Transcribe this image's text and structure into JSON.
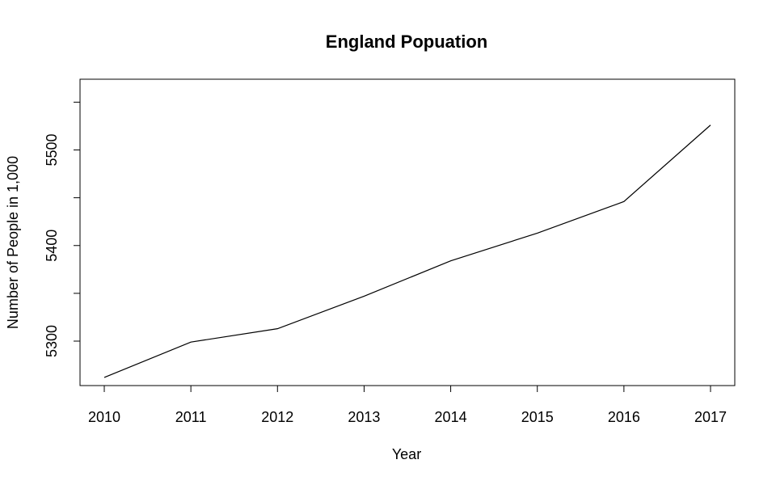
{
  "chart_data": {
    "type": "line",
    "title": "England Popuation",
    "xlabel": "Year",
    "ylabel": "Number of People in 1,000",
    "x": [
      2010,
      2011,
      2012,
      2013,
      2014,
      2015,
      2016,
      2017
    ],
    "series": [
      {
        "values": [
          5262,
          5299,
          5313,
          5347,
          5384,
          5413,
          5446,
          5526
        ]
      }
    ],
    "xticks": [
      2010,
      2011,
      2012,
      2013,
      2014,
      2015,
      2016,
      2017
    ],
    "yticks": [
      5300,
      5400,
      5500
    ],
    "xlim": [
      2009.72,
      2017.28
    ],
    "ylim": [
      5253.5,
      5574
    ],
    "grid": false,
    "line_color": "#000000"
  }
}
